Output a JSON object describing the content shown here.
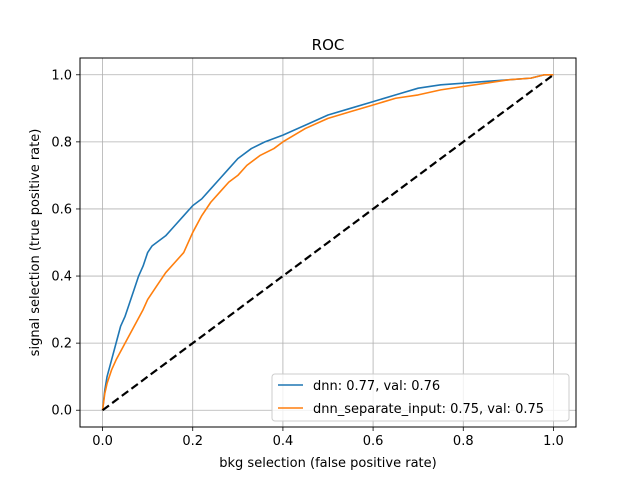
{
  "chart_data": {
    "type": "line",
    "title": "ROC",
    "xlabel": "bkg selection (false positive rate)",
    "ylabel": "signal selection (true positive rate)",
    "xlim": [
      -0.05,
      1.05
    ],
    "ylim": [
      -0.05,
      1.05
    ],
    "xticks": [
      0.0,
      0.2,
      0.4,
      0.6,
      0.8,
      1.0
    ],
    "yticks": [
      0.0,
      0.2,
      0.4,
      0.6,
      0.8,
      1.0
    ],
    "xtick_labels": [
      "0.0",
      "0.2",
      "0.4",
      "0.6",
      "0.8",
      "1.0"
    ],
    "ytick_labels": [
      "0.0",
      "0.2",
      "0.4",
      "0.6",
      "0.8",
      "1.0"
    ],
    "grid": true,
    "legend_position": "lower-right",
    "series": [
      {
        "name": "dnn: 0.77, val: 0.76",
        "color": "#1f77b4",
        "style": "solid",
        "x": [
          0.0,
          0.005,
          0.01,
          0.02,
          0.03,
          0.04,
          0.05,
          0.06,
          0.07,
          0.08,
          0.09,
          0.1,
          0.11,
          0.12,
          0.14,
          0.16,
          0.18,
          0.2,
          0.22,
          0.24,
          0.26,
          0.28,
          0.3,
          0.33,
          0.36,
          0.4,
          0.45,
          0.5,
          0.55,
          0.6,
          0.65,
          0.7,
          0.75,
          0.8,
          0.85,
          0.9,
          0.95,
          0.98,
          1.0
        ],
        "y": [
          0.0,
          0.06,
          0.1,
          0.15,
          0.2,
          0.25,
          0.28,
          0.32,
          0.36,
          0.4,
          0.43,
          0.47,
          0.49,
          0.5,
          0.52,
          0.55,
          0.58,
          0.61,
          0.63,
          0.66,
          0.69,
          0.72,
          0.75,
          0.78,
          0.8,
          0.82,
          0.85,
          0.88,
          0.9,
          0.92,
          0.94,
          0.96,
          0.97,
          0.975,
          0.98,
          0.985,
          0.99,
          1.0,
          1.0
        ]
      },
      {
        "name": "dnn_separate_input: 0.75, val: 0.75",
        "color": "#ff7f0e",
        "style": "solid",
        "x": [
          0.0,
          0.005,
          0.01,
          0.02,
          0.03,
          0.05,
          0.07,
          0.09,
          0.1,
          0.12,
          0.14,
          0.16,
          0.18,
          0.2,
          0.22,
          0.24,
          0.26,
          0.28,
          0.3,
          0.32,
          0.35,
          0.38,
          0.4,
          0.45,
          0.5,
          0.55,
          0.6,
          0.65,
          0.7,
          0.75,
          0.8,
          0.85,
          0.9,
          0.95,
          0.98,
          1.0
        ],
        "y": [
          0.0,
          0.05,
          0.08,
          0.12,
          0.15,
          0.2,
          0.25,
          0.3,
          0.33,
          0.37,
          0.41,
          0.44,
          0.47,
          0.53,
          0.58,
          0.62,
          0.65,
          0.68,
          0.7,
          0.73,
          0.76,
          0.78,
          0.8,
          0.84,
          0.87,
          0.89,
          0.91,
          0.93,
          0.94,
          0.955,
          0.965,
          0.975,
          0.985,
          0.99,
          1.0,
          1.0
        ]
      },
      {
        "name": "",
        "color": "#000000",
        "style": "dashed",
        "x": [
          0.0,
          1.0
        ],
        "y": [
          0.0,
          1.0
        ]
      }
    ]
  }
}
